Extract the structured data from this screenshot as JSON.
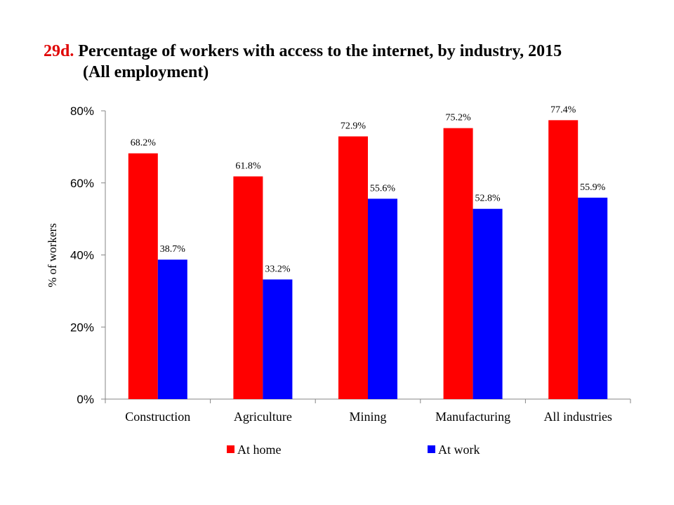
{
  "title": {
    "number": "29d.",
    "line1": "Percentage of workers with access to the internet, by industry, 2015",
    "line2": "(All employment)"
  },
  "chart_data": {
    "type": "bar",
    "title": "Percentage of workers with access to the internet, by industry, 2015 (All employment)",
    "ylabel": "% of workers",
    "xlabel": "",
    "ylim": [
      0,
      80
    ],
    "yticks": [
      0,
      20,
      40,
      60,
      80
    ],
    "ytick_labels": [
      "0%",
      "20%",
      "40%",
      "60%",
      "80%"
    ],
    "categories": [
      "Construction",
      "Agriculture",
      "Mining",
      "Manufacturing",
      "All industries"
    ],
    "series": [
      {
        "name": "At home",
        "color": "#ff0000",
        "values": [
          68.2,
          61.8,
          72.9,
          75.2,
          77.4
        ],
        "labels": [
          "68.2%",
          "61.8%",
          "72.9%",
          "75.2%",
          "77.4%"
        ]
      },
      {
        "name": "At work",
        "color": "#0000ff",
        "values": [
          38.7,
          33.2,
          55.6,
          52.8,
          55.9
        ],
        "labels": [
          "38.7%",
          "33.2%",
          "55.6%",
          "52.8%",
          "55.9%"
        ]
      }
    ],
    "grid": false,
    "legend": "bottom"
  }
}
